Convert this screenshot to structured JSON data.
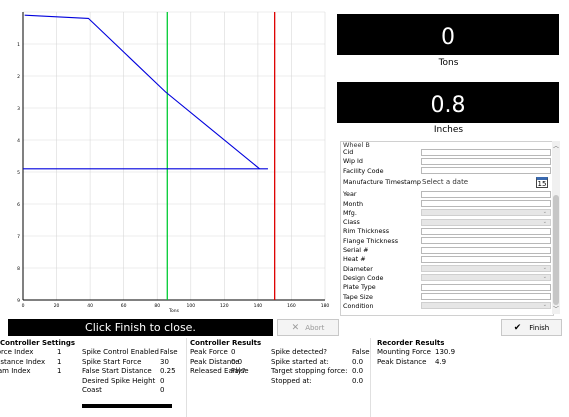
{
  "readouts": {
    "tons": {
      "value": "0",
      "unit": "Tons"
    },
    "inches": {
      "value": "0.8",
      "unit": "Inches"
    }
  },
  "form": {
    "group_title": "Wheel B",
    "fields": [
      {
        "label": "Cid",
        "type": "text",
        "value": ""
      },
      {
        "label": "Wip Id",
        "type": "text",
        "value": ""
      },
      {
        "label": "Facility Code",
        "type": "text",
        "value": ""
      },
      {
        "label": "Manufacture Timestamp",
        "type": "date",
        "value": "",
        "placeholder": "Select a date",
        "icon_text": "15"
      },
      {
        "label": "Year",
        "type": "text",
        "value": ""
      },
      {
        "label": "Month",
        "type": "text",
        "value": ""
      },
      {
        "label": "Mfg.",
        "type": "combo",
        "value": ""
      },
      {
        "label": "Class",
        "type": "combo",
        "value": ""
      },
      {
        "label": "Rim Thickness",
        "type": "text",
        "value": ""
      },
      {
        "label": "Flange Thickness",
        "type": "text",
        "value": ""
      },
      {
        "label": "Serial #",
        "type": "text",
        "value": ""
      },
      {
        "label": "Heat #",
        "type": "text",
        "value": ""
      },
      {
        "label": "Diameter",
        "type": "combo",
        "value": ""
      },
      {
        "label": "Design Code",
        "type": "combo",
        "value": ""
      },
      {
        "label": "Plate Type",
        "type": "text",
        "value": ""
      },
      {
        "label": "Tape Size",
        "type": "text",
        "value": ""
      },
      {
        "label": "Condition",
        "type": "combo",
        "value": ""
      }
    ]
  },
  "status": {
    "message": "Click Finish to close."
  },
  "buttons": {
    "abort": "Abort",
    "finish": "Finish"
  },
  "controller_settings": {
    "title": "Controller Settings",
    "col1": [
      {
        "label": "Force Index",
        "value": "1"
      },
      {
        "label": "Distance Index",
        "value": "1"
      },
      {
        "label": "Cam Index",
        "value": "1"
      }
    ],
    "col2": [
      {
        "label": "Spike Control Enabled",
        "value": "False"
      },
      {
        "label": "Spike Start Force",
        "value": "30"
      },
      {
        "label": "False Start Distance",
        "value": "0.25"
      },
      {
        "label": "Desired Spike Height",
        "value": "0"
      },
      {
        "label": "Coast",
        "value": "0"
      }
    ]
  },
  "controller_results": {
    "title": "Controller Results",
    "col1": [
      {
        "label": "Peak Force",
        "value": "0"
      },
      {
        "label": "Peak Distance",
        "value": "0.0"
      },
      {
        "label": "Released Early?",
        "value": "False"
      }
    ],
    "col2": [
      {
        "label": "Spike detected?",
        "value": "False"
      },
      {
        "label": "Spike started at:",
        "value": "0.0"
      },
      {
        "label": "Target stopping force:",
        "value": "0.0"
      },
      {
        "label": "Stopped at:",
        "value": "0.0"
      }
    ]
  },
  "recorder_results": {
    "title": "Recorder Results",
    "rows": [
      {
        "label": "Mounting Force",
        "value": "130.9"
      },
      {
        "label": "Peak Distance",
        "value": "4.9"
      }
    ]
  },
  "chart_data": {
    "type": "line",
    "xlabel": "Tons",
    "ylabel": "",
    "xlim": [
      0,
      180
    ],
    "ylim": [
      0,
      9
    ],
    "y_inverted": true,
    "x_ticks": [
      0,
      20,
      40,
      60,
      80,
      100,
      120,
      140,
      160,
      180
    ],
    "x_tick_labels": [
      "0",
      "20",
      "40",
      "60",
      "80",
      "100",
      "120",
      "140",
      "160",
      "180"
    ],
    "y_ticks": [
      0,
      1,
      2,
      3,
      4,
      5,
      6,
      7,
      8,
      9
    ],
    "y_tick_labels": [
      "",
      "1",
      "2",
      "3",
      "4",
      "5",
      "6",
      "7",
      "8",
      "9"
    ],
    "grid": true,
    "series": [
      {
        "color": "#0000dd",
        "x": [
          1,
          39,
          85,
          141
        ],
        "y": [
          0.1,
          0.2,
          2.5,
          4.9
        ]
      },
      {
        "color": "#0000dd",
        "x": [
          0,
          146
        ],
        "y": [
          4.9,
          4.9
        ]
      }
    ],
    "vlines": [
      {
        "x": 86,
        "color": "#00cc33"
      },
      {
        "x": 150,
        "color": "#dd0000"
      }
    ],
    "colors": {
      "grid": "#d9d9d9",
      "axis": "#000000"
    }
  }
}
